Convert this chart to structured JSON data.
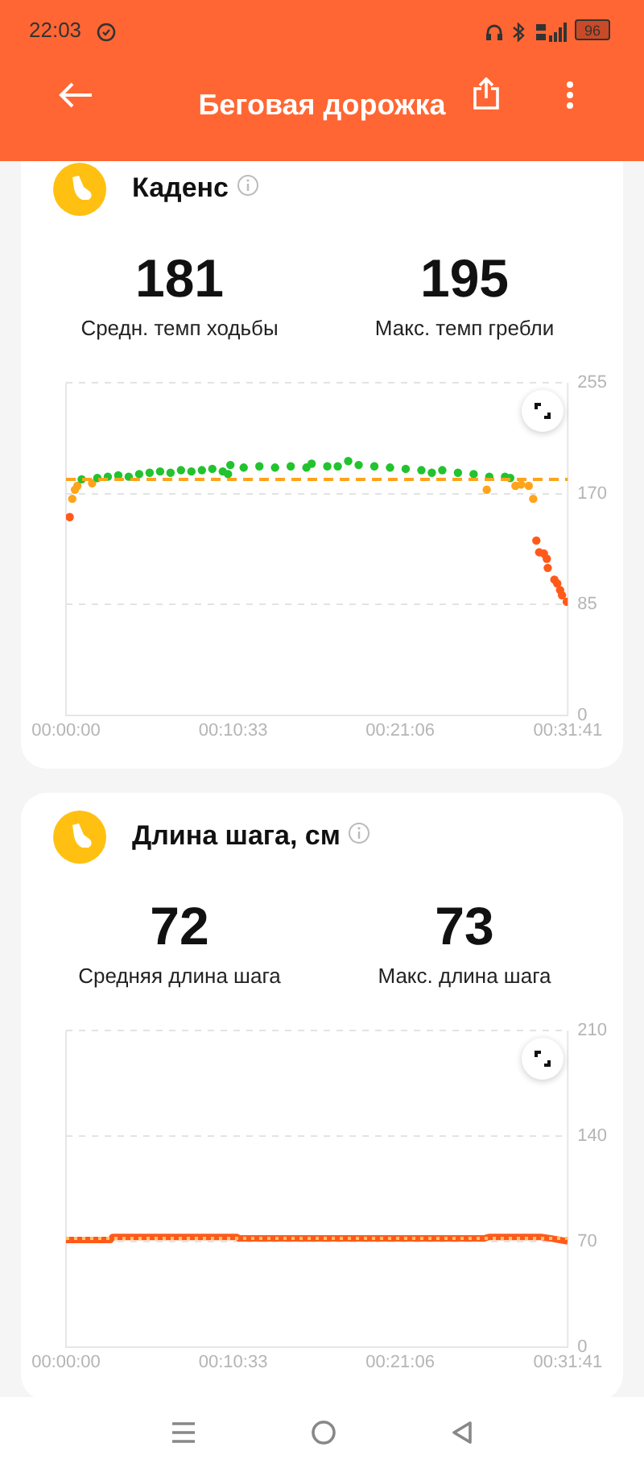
{
  "chart_data": [
    {
      "type": "scatter",
      "title": "Каденс",
      "annotations": [
        "181",
        "Средн. темп ходьбы",
        "195",
        "Макс. темп гребли",
        "22:03",
        "96",
        "Беговая дорожка"
      ],
      "series": [
        {
          "color": "#22c32e",
          "x": [
            0.0165,
            0.033,
            0.044,
            0.055,
            0.066,
            0.077,
            0.088,
            0.099,
            0.11,
            0.121,
            0.132,
            0.143,
            0.154,
            0.165,
            0.1705,
            0.173,
            0.187,
            0.2035,
            0.22,
            0.2365,
            0.253,
            0.2585,
            0.275,
            0.286,
            0.297,
            0.308,
            0.3245,
            0.341,
            0.3575,
            0.374,
            0.385,
            0.396,
            0.4125,
            0.429,
            0.4455,
            0.462,
            0.4675
          ],
          "values": [
            181,
            182,
            183,
            184,
            183,
            185,
            186,
            187,
            186,
            188,
            187,
            188,
            189,
            187,
            185,
            192,
            190,
            191,
            190,
            191,
            190,
            193,
            191,
            191,
            195,
            192,
            191,
            190,
            189,
            188,
            186,
            188,
            186,
            185,
            183,
            183,
            182
          ]
        },
        {
          "color": "#ffa41b",
          "x": [
            0.0066,
            0.0094,
            0.012,
            0.0275,
            0.4428,
            0.473,
            0.479,
            0.487,
            0.4917
          ],
          "values": [
            166,
            173,
            176,
            178,
            173,
            176,
            177,
            176,
            166
          ]
        },
        {
          "color": "#ff5a1a",
          "x": [
            0.0039,
            0.495,
            0.498,
            0.503,
            0.506,
            0.507,
            0.514,
            0.517,
            0.52,
            0.522,
            0.527
          ],
          "values": [
            152,
            134,
            125,
            124,
            120,
            113,
            104,
            101,
            96,
            92,
            87
          ]
        }
      ],
      "xlim": [
        0,
        0.52806
      ],
      "xticks": [
        {
          "value": 0,
          "label": "00:00:00"
        },
        {
          "value": 0.17583,
          "label": "00:10:33"
        },
        {
          "value": 0.35167,
          "label": "00:21:06"
        },
        {
          "value": 0.52806,
          "label": "00:31:41"
        }
      ],
      "ylim": [
        0,
        255
      ],
      "yticks": [
        0,
        85,
        170,
        255
      ],
      "ref_lines": [
        {
          "axis": "y",
          "value": 181,
          "color": "#ffa41b",
          "line_style": "dashed"
        }
      ],
      "grid": "y",
      "legend": false,
      "marker": "circle"
    },
    {
      "type": "line",
      "title": "Длина шага, см",
      "annotations": [
        "72",
        "Средняя длина шага",
        "73",
        "Макс. длина шага"
      ],
      "series": [
        {
          "color": "#ff5a1a",
          "x": [
            0,
            0.047,
            0.049,
            0.18,
            0.182,
            0.44,
            0.445,
            0.5,
            0.51,
            0.528
          ],
          "values": [
            71,
            71,
            73,
            73,
            72,
            72,
            73,
            73,
            72,
            70
          ]
        }
      ],
      "xlim": [
        0,
        0.52806
      ],
      "xticks": [
        {
          "value": 0,
          "label": "00:00:00"
        },
        {
          "value": 0.17583,
          "label": "00:10:33"
        },
        {
          "value": 0.35167,
          "label": "00:21:06"
        },
        {
          "value": 0.52806,
          "label": "00:31:41"
        }
      ],
      "ylim": [
        0,
        210
      ],
      "yticks": [
        0,
        70,
        140,
        210
      ],
      "ref_lines": [
        {
          "axis": "y",
          "value": 72,
          "color": "#ffc266",
          "line_style": "dotted"
        }
      ],
      "grid": "y",
      "legend": false,
      "marker": "none",
      "line_style": "solid"
    }
  ]
}
